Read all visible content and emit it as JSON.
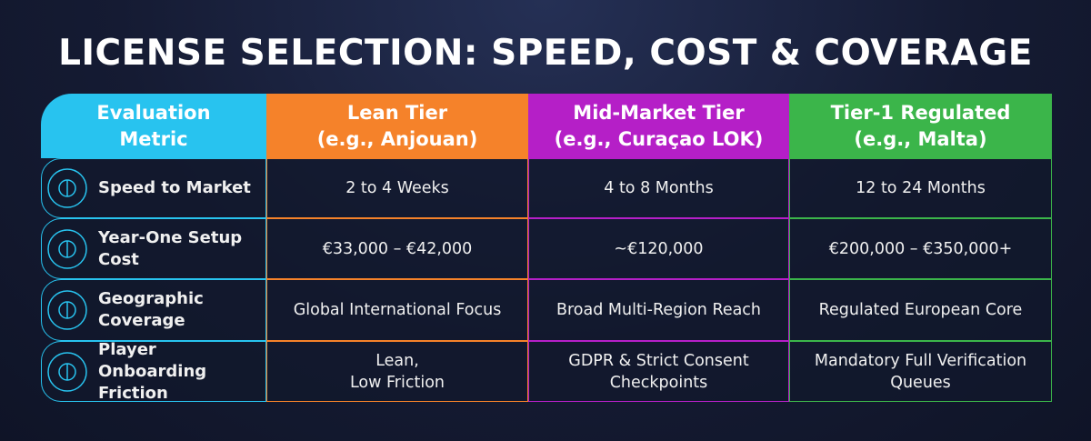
{
  "title": "LICENSE SELECTION: SPEED, COST & COVERAGE",
  "table": {
    "header": [
      [
        "Evaluation",
        "Metric"
      ],
      [
        "Lean Tier",
        "(e.g., Anjouan)"
      ],
      [
        "Mid-Market Tier",
        "(e.g., Curaçao LOK)"
      ],
      [
        "Tier-1 Regulated",
        "(e.g., Malta)"
      ]
    ],
    "rows": [
      {
        "metric": [
          "Speed to Market"
        ],
        "values": [
          [
            "2 to 4 Weeks"
          ],
          [
            "4 to 8 Months"
          ],
          [
            "12 to 24 Months"
          ]
        ]
      },
      {
        "metric": [
          "Year-One Setup",
          "Cost"
        ],
        "values": [
          [
            "€33,000 – €42,000"
          ],
          [
            "~€120,000"
          ],
          [
            "€200,000 – €350,000+"
          ]
        ]
      },
      {
        "metric": [
          "Geographic",
          "Coverage"
        ],
        "values": [
          [
            "Global International Focus"
          ],
          [
            "Broad Multi-Region Reach"
          ],
          [
            "Regulated European Core"
          ]
        ]
      },
      {
        "metric": [
          "Player Onboarding",
          "Friction"
        ],
        "values": [
          [
            "Lean,",
            "Low Friction"
          ],
          [
            "GDPR & Strict Consent",
            "Checkpoints"
          ],
          [
            "Mandatory Full Verification",
            "Queues"
          ]
        ]
      }
    ]
  }
}
